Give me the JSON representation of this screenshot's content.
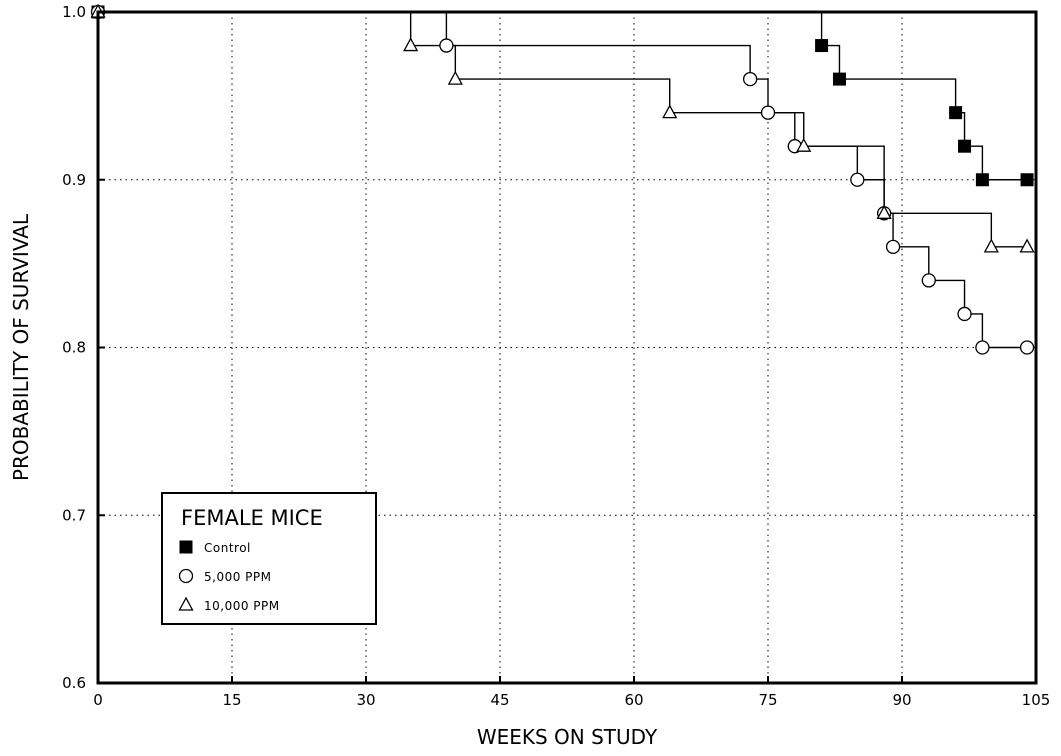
{
  "chart_data": {
    "type": "line",
    "step": true,
    "title": "",
    "xlabel": "WEEKS ON STUDY",
    "ylabel": "PROBABILITY OF SURVIVAL",
    "xlim": [
      0,
      105
    ],
    "ylim": [
      0.6,
      1.0
    ],
    "x_ticks": [
      0,
      15,
      30,
      45,
      60,
      75,
      90,
      105
    ],
    "x_tick_labels": [
      "0",
      "15",
      "30",
      "45",
      "60",
      "75",
      "90",
      "105"
    ],
    "y_ticks": [
      0.6,
      0.7,
      0.8,
      0.9,
      1.0
    ],
    "y_tick_labels": [
      "0.6",
      "0.7",
      "0.8",
      "0.9",
      "1.0"
    ],
    "grid": true,
    "grid_style": "dotted",
    "legend": {
      "title": "FEMALE MICE",
      "placement": "lower-left"
    },
    "series": [
      {
        "name": "Control",
        "marker": "filled-square",
        "color": "#000000",
        "points": [
          {
            "x": 0,
            "y": 1.0
          },
          {
            "x": 81,
            "y": 0.98
          },
          {
            "x": 83,
            "y": 0.96
          },
          {
            "x": 96,
            "y": 0.94
          },
          {
            "x": 97,
            "y": 0.92
          },
          {
            "x": 99,
            "y": 0.9
          },
          {
            "x": 104,
            "y": 0.9
          }
        ]
      },
      {
        "name": "5,000 PPM",
        "marker": "open-circle",
        "color": "#000000",
        "points": [
          {
            "x": 0,
            "y": 1.0
          },
          {
            "x": 39,
            "y": 0.98
          },
          {
            "x": 73,
            "y": 0.96
          },
          {
            "x": 75,
            "y": 0.94
          },
          {
            "x": 78,
            "y": 0.92
          },
          {
            "x": 85,
            "y": 0.9
          },
          {
            "x": 88,
            "y": 0.88
          },
          {
            "x": 89,
            "y": 0.86
          },
          {
            "x": 93,
            "y": 0.84
          },
          {
            "x": 97,
            "y": 0.82
          },
          {
            "x": 99,
            "y": 0.8
          },
          {
            "x": 104,
            "y": 0.8
          }
        ]
      },
      {
        "name": "10,000 PPM",
        "marker": "open-triangle",
        "color": "#000000",
        "points": [
          {
            "x": 0,
            "y": 1.0
          },
          {
            "x": 35,
            "y": 0.98
          },
          {
            "x": 40,
            "y": 0.96
          },
          {
            "x": 64,
            "y": 0.94
          },
          {
            "x": 79,
            "y": 0.92
          },
          {
            "x": 88,
            "y": 0.88
          },
          {
            "x": 100,
            "y": 0.86
          },
          {
            "x": 104,
            "y": 0.86
          }
        ]
      }
    ]
  }
}
